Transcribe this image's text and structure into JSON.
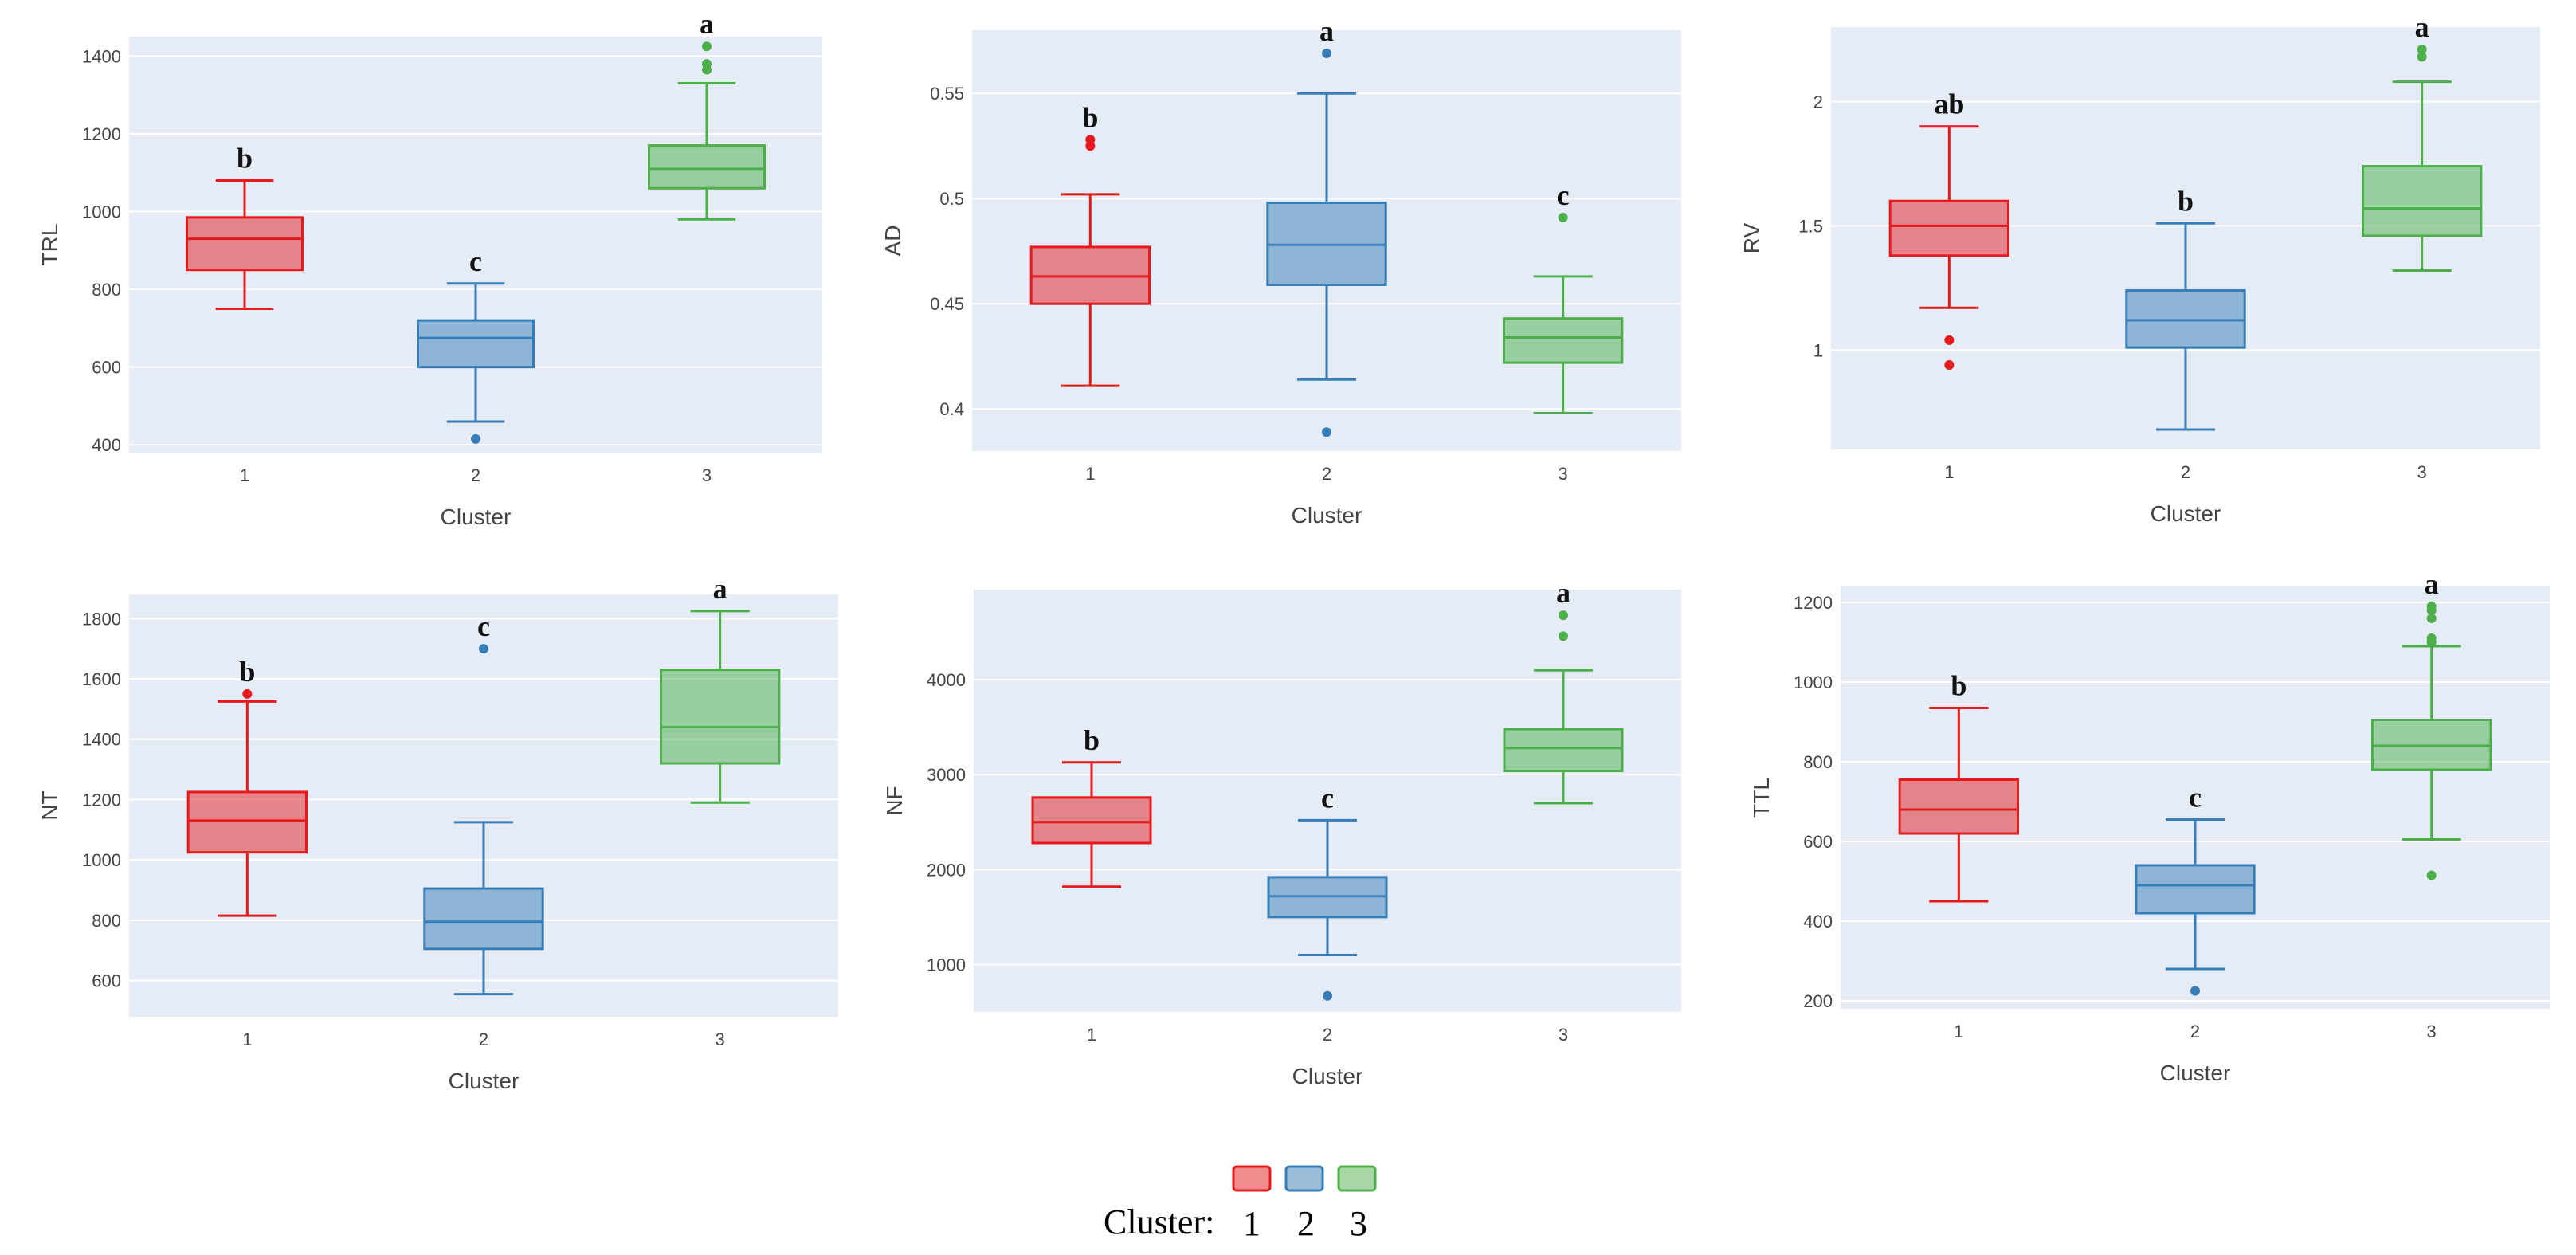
{
  "legend": {
    "title": "Cluster:",
    "items": [
      {
        "label": "1",
        "color": "#e41a1c"
      },
      {
        "label": "2",
        "color": "#377eb8"
      },
      {
        "label": "3",
        "color": "#4daf4a"
      }
    ]
  },
  "chart_data": [
    {
      "type": "box",
      "title": "",
      "xlabel": "Cluster",
      "ylabel": "TRL",
      "ylim": [
        380,
        1450
      ],
      "yticks": [
        400,
        600,
        800,
        1000,
        1200,
        1400
      ],
      "categories": [
        "1",
        "2",
        "3"
      ],
      "boxes": [
        {
          "cluster": "1",
          "min": 750,
          "q1": 850,
          "median": 930,
          "q3": 985,
          "max": 1080,
          "outliers": [],
          "letter": "b"
        },
        {
          "cluster": "2",
          "min": 460,
          "q1": 600,
          "median": 675,
          "q3": 720,
          "max": 815,
          "outliers": [
            415
          ],
          "letter": "c"
        },
        {
          "cluster": "3",
          "min": 980,
          "q1": 1060,
          "median": 1110,
          "q3": 1170,
          "max": 1330,
          "outliers": [
            1365,
            1380,
            1425
          ],
          "letter": "a"
        }
      ]
    },
    {
      "type": "box",
      "title": "",
      "xlabel": "Cluster",
      "ylabel": "AD",
      "ylim": [
        0.38,
        0.58
      ],
      "yticks": [
        0.4,
        0.45,
        0.5,
        0.55
      ],
      "categories": [
        "1",
        "2",
        "3"
      ],
      "boxes": [
        {
          "cluster": "1",
          "min": 0.411,
          "q1": 0.45,
          "median": 0.463,
          "q3": 0.477,
          "max": 0.502,
          "outliers": [
            0.525,
            0.528
          ],
          "letter": "b"
        },
        {
          "cluster": "2",
          "min": 0.414,
          "q1": 0.459,
          "median": 0.478,
          "q3": 0.498,
          "max": 0.55,
          "outliers": [
            0.389,
            0.569
          ],
          "letter": "a"
        },
        {
          "cluster": "3",
          "min": 0.398,
          "q1": 0.422,
          "median": 0.434,
          "q3": 0.443,
          "max": 0.463,
          "outliers": [
            0.491
          ],
          "letter": "c"
        }
      ]
    },
    {
      "type": "box",
      "title": "",
      "xlabel": "Cluster",
      "ylabel": "RV",
      "ylim": [
        0.6,
        2.3
      ],
      "yticks": [
        1,
        1.5,
        2
      ],
      "categories": [
        "1",
        "2",
        "3"
      ],
      "boxes": [
        {
          "cluster": "1",
          "min": 1.17,
          "q1": 1.38,
          "median": 1.5,
          "q3": 1.6,
          "max": 1.9,
          "outliers": [
            0.94,
            1.04
          ],
          "letter": "ab"
        },
        {
          "cluster": "2",
          "min": 0.68,
          "q1": 1.01,
          "median": 1.12,
          "q3": 1.24,
          "max": 1.51,
          "outliers": [],
          "letter": "b"
        },
        {
          "cluster": "3",
          "min": 1.32,
          "q1": 1.46,
          "median": 1.57,
          "q3": 1.74,
          "max": 2.08,
          "outliers": [
            2.18,
            2.21
          ],
          "letter": "a"
        }
      ]
    },
    {
      "type": "box",
      "title": "",
      "xlabel": "Cluster",
      "ylabel": "NT",
      "ylim": [
        480,
        1880
      ],
      "yticks": [
        600,
        800,
        1000,
        1200,
        1400,
        1600,
        1800
      ],
      "categories": [
        "1",
        "2",
        "3"
      ],
      "boxes": [
        {
          "cluster": "1",
          "min": 815,
          "q1": 1025,
          "median": 1130,
          "q3": 1225,
          "max": 1525,
          "outliers": [
            1550
          ],
          "letter": "b"
        },
        {
          "cluster": "2",
          "min": 555,
          "q1": 705,
          "median": 795,
          "q3": 905,
          "max": 1125,
          "outliers": [
            1700
          ],
          "letter": "c"
        },
        {
          "cluster": "3",
          "min": 1190,
          "q1": 1320,
          "median": 1440,
          "q3": 1630,
          "max": 1825,
          "outliers": [],
          "letter": "a"
        }
      ]
    },
    {
      "type": "box",
      "title": "",
      "xlabel": "Cluster",
      "ylabel": "NF",
      "ylim": [
        500,
        4950
      ],
      "yticks": [
        1000,
        2000,
        3000,
        4000
      ],
      "categories": [
        "1",
        "2",
        "3"
      ],
      "boxes": [
        {
          "cluster": "1",
          "min": 1820,
          "q1": 2280,
          "median": 2500,
          "q3": 2760,
          "max": 3130,
          "outliers": [],
          "letter": "b"
        },
        {
          "cluster": "2",
          "min": 1100,
          "q1": 1500,
          "median": 1720,
          "q3": 1920,
          "max": 2520,
          "outliers": [
            670
          ],
          "letter": "c"
        },
        {
          "cluster": "3",
          "min": 2700,
          "q1": 3040,
          "median": 3280,
          "q3": 3480,
          "max": 4100,
          "outliers": [
            4460,
            4680
          ],
          "letter": "a"
        }
      ]
    },
    {
      "type": "box",
      "title": "",
      "xlabel": "Cluster",
      "ylabel": "TTL",
      "ylim": [
        180,
        1240
      ],
      "yticks": [
        200,
        400,
        600,
        800,
        1000,
        1200
      ],
      "categories": [
        "1",
        "2",
        "3"
      ],
      "boxes": [
        {
          "cluster": "1",
          "min": 450,
          "q1": 620,
          "median": 680,
          "q3": 755,
          "max": 935,
          "outliers": [],
          "letter": "b"
        },
        {
          "cluster": "2",
          "min": 280,
          "q1": 420,
          "median": 490,
          "q3": 540,
          "max": 655,
          "outliers": [
            225
          ],
          "letter": "c"
        },
        {
          "cluster": "3",
          "min": 605,
          "q1": 780,
          "median": 840,
          "q3": 905,
          "max": 1090,
          "outliers": [
            515,
            1100,
            1110,
            1160,
            1180,
            1190
          ],
          "letter": "a"
        }
      ]
    }
  ]
}
